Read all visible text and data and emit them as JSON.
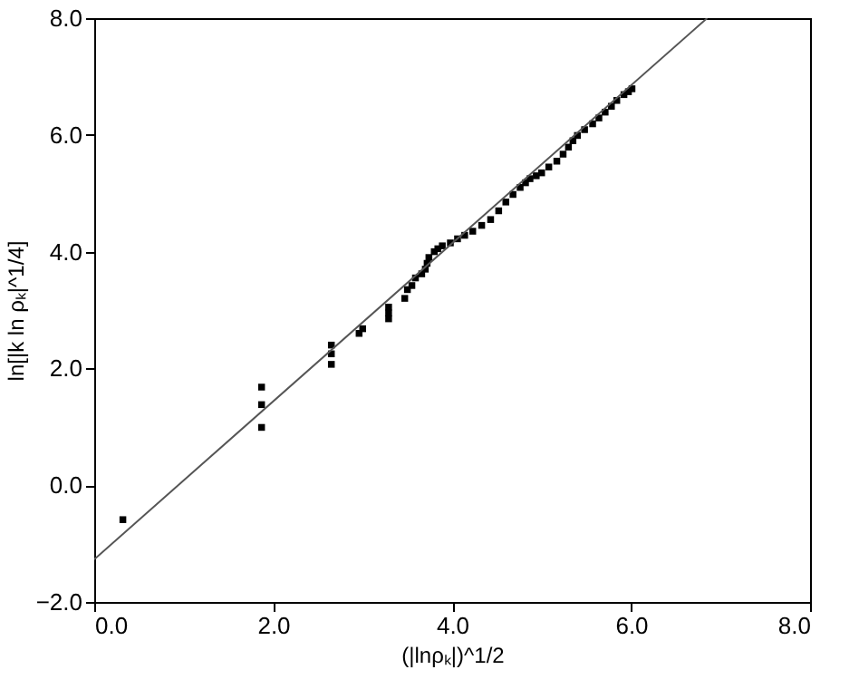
{
  "chart_data": {
    "type": "scatter",
    "xlabel": "(|lnρₖ|)^1/2",
    "ylabel": "ln[|k ln  ρₖ|^1/4]",
    "xlim": [
      0,
      8
    ],
    "ylim": [
      -2,
      8
    ],
    "xticks": [
      {
        "value": 0,
        "label": "0.0"
      },
      {
        "value": 2,
        "label": "2.0"
      },
      {
        "value": 4,
        "label": "4.0"
      },
      {
        "value": 6,
        "label": "6.0"
      },
      {
        "value": 8,
        "label": "8.0"
      }
    ],
    "yticks": [
      {
        "value": -2,
        "label": "−2.0"
      },
      {
        "value": 0,
        "label": "0.0"
      },
      {
        "value": 2,
        "label": "2.0"
      },
      {
        "value": 4,
        "label": "4.0"
      },
      {
        "value": 6,
        "label": "6.0"
      },
      {
        "value": 8,
        "label": "8.0"
      }
    ],
    "grid": false,
    "series": [
      {
        "marker": "square",
        "color": "#000000",
        "x": [
          0.32,
          1.87,
          1.87,
          1.87,
          2.65,
          2.65,
          2.65,
          2.96,
          3.0,
          3.29,
          3.29,
          3.29,
          3.47,
          3.5,
          3.55,
          3.59,
          3.66,
          3.7,
          3.72,
          3.74,
          3.8,
          3.84,
          3.89,
          3.98,
          4.06,
          4.14,
          4.23,
          4.33,
          4.43,
          4.52,
          4.6,
          4.68,
          4.76,
          4.82,
          4.87,
          4.94,
          5.0,
          5.08,
          5.17,
          5.24,
          5.3,
          5.35,
          5.4,
          5.48,
          5.57,
          5.64,
          5.71,
          5.78,
          5.84,
          5.92,
          5.97,
          6.01
        ],
        "values": [
          -0.59,
          1.68,
          1.38,
          0.99,
          2.4,
          2.25,
          2.07,
          2.6,
          2.68,
          2.85,
          2.95,
          3.05,
          3.2,
          3.35,
          3.42,
          3.55,
          3.62,
          3.7,
          3.8,
          3.9,
          4.0,
          4.05,
          4.1,
          4.15,
          4.22,
          4.28,
          4.35,
          4.45,
          4.55,
          4.7,
          4.85,
          4.98,
          5.1,
          5.18,
          5.25,
          5.3,
          5.35,
          5.45,
          5.55,
          5.67,
          5.79,
          5.9,
          5.99,
          6.09,
          6.19,
          6.29,
          6.39,
          6.49,
          6.59,
          6.69,
          6.74,
          6.79
        ]
      },
      {
        "type": "line",
        "marker": "none",
        "color": "#555555",
        "x": [
          0,
          6.85
        ],
        "values": [
          -1.27,
          8
        ]
      }
    ]
  }
}
